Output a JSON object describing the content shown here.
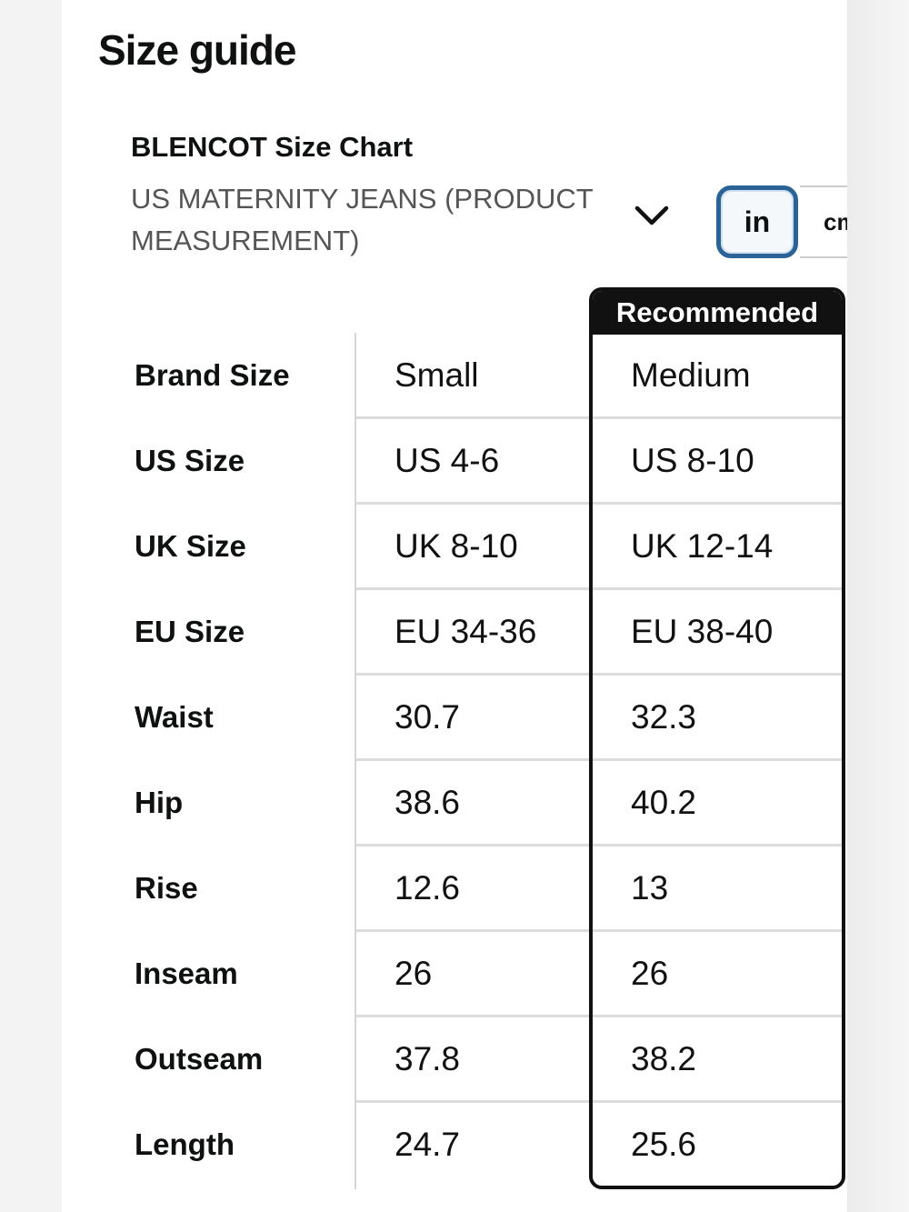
{
  "page": {
    "title": "Size guide"
  },
  "chart": {
    "brand_title": "BLENCOT Size Chart",
    "product_type": "US MATERNITY JEANS (PRODUCT MEASUREMENT)"
  },
  "unit_toggle": {
    "in_label": "in",
    "cm_label": "cm"
  },
  "recommended_label": "Recommended",
  "rows": [
    {
      "label": "Brand Size",
      "small": "Small",
      "medium": "Medium"
    },
    {
      "label": "US Size",
      "small": "US 4-6",
      "medium": "US 8-10"
    },
    {
      "label": "UK Size",
      "small": "UK 8-10",
      "medium": "UK 12-14"
    },
    {
      "label": "EU Size",
      "small": "EU 34-36",
      "medium": "EU 38-40"
    },
    {
      "label": "Waist",
      "small": "30.7",
      "medium": "32.3"
    },
    {
      "label": "Hip",
      "small": "38.6",
      "medium": "40.2"
    },
    {
      "label": "Rise",
      "small": "12.6",
      "medium": "13"
    },
    {
      "label": "Inseam",
      "small": "26",
      "medium": "26"
    },
    {
      "label": "Outseam",
      "small": "37.8",
      "medium": "38.2"
    },
    {
      "label": "Length",
      "small": "24.7",
      "medium": "25.6"
    }
  ]
}
